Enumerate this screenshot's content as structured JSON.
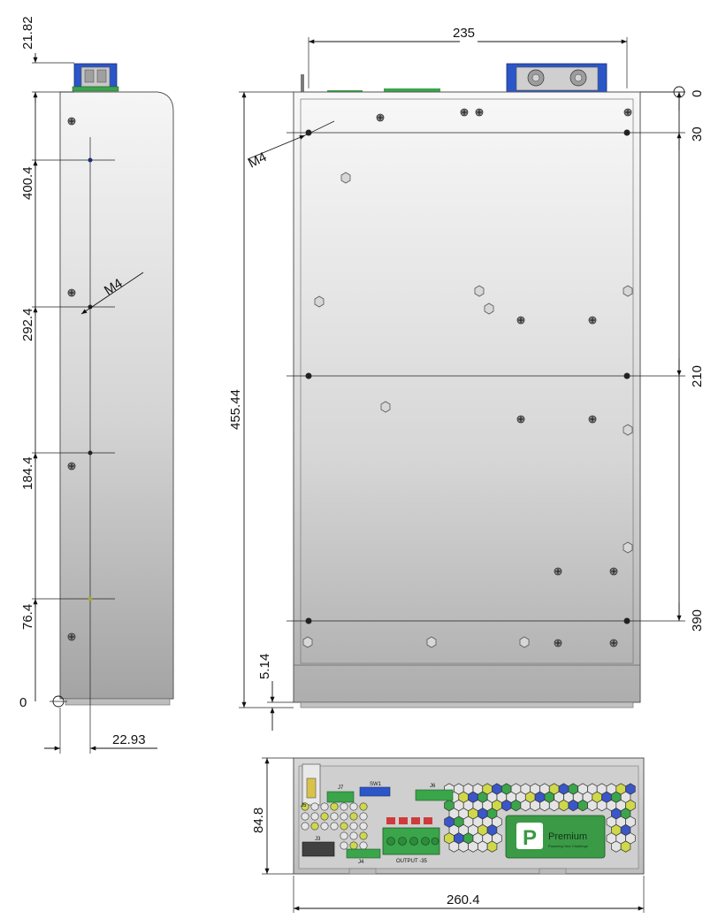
{
  "dimensions": {
    "side_top_height": "21.82",
    "side_hole_1": "400.4",
    "side_hole_2": "292.4",
    "side_hole_3": "184.4",
    "side_hole_4": "76.4",
    "side_origin": "0",
    "side_offset": "22.93",
    "side_thread": "M4",
    "front_width": "235",
    "front_height": "455.44",
    "front_bottom": "5.14",
    "front_thread": "M4",
    "right_origin": "0",
    "right_30": "30",
    "right_210": "210",
    "right_390": "390",
    "end_height": "84.8",
    "end_width": "260.4"
  },
  "connector_labels": {
    "j7": "J7",
    "sw1": "SW1",
    "j6": "J6",
    "j3": "J3",
    "j4": "J4",
    "j5": "J5",
    "output": "OUTPUT -35"
  },
  "brand": {
    "logo_letter": "P",
    "name": "Premium",
    "tagline": "Powering Your Challenge"
  },
  "colors": {
    "pcb_green": "#3aa54a",
    "terminal_blue": "#2b56c8",
    "housing_light": "#f2f2f2",
    "housing_dark": "#a9a9a9"
  }
}
